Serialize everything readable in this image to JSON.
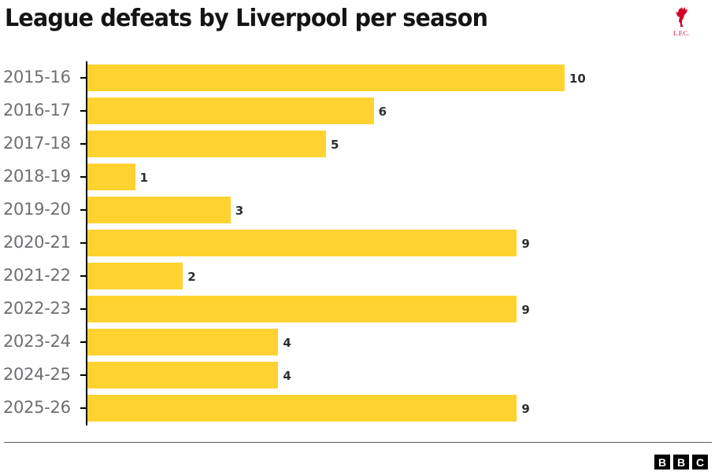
{
  "header": {
    "title": "League defeats by Liverpool per season",
    "logo_text": "L.F.C.",
    "logo_color": "#d00027"
  },
  "footer": {
    "brand_letters": [
      "B",
      "B",
      "C"
    ]
  },
  "colors": {
    "bar": "#ffd22f",
    "axis": "#000000",
    "label": "#6e6e73",
    "value": "#2e2e2e"
  },
  "chart_data": {
    "type": "bar",
    "orientation": "horizontal",
    "title": "League defeats by Liverpool per season",
    "xlabel": "",
    "ylabel": "",
    "categories": [
      "2015-16",
      "2016-17",
      "2017-18",
      "2018-19",
      "2019-20",
      "2020-21",
      "2021-22",
      "2022-23",
      "2023-24",
      "2024-25",
      "2025-26"
    ],
    "values": [
      10,
      6,
      5,
      1,
      3,
      9,
      2,
      9,
      4,
      4,
      9
    ],
    "xlim": [
      0,
      10
    ],
    "grid": false,
    "legend": null,
    "data_labels": true
  }
}
